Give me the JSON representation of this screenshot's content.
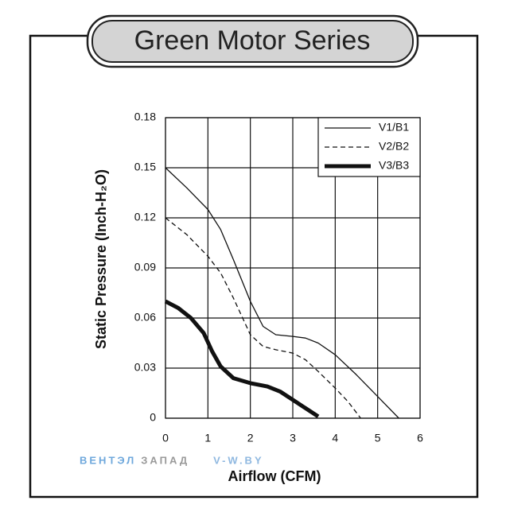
{
  "chart_data": {
    "type": "line",
    "title": "Green Motor Series",
    "x_label": "Airflow (CFM)",
    "y_label": "Static Pressure (Inch-H₂O)",
    "xlim": [
      0,
      6
    ],
    "xticks": [
      0,
      1,
      2,
      3,
      4,
      5,
      6
    ],
    "ylim": [
      0,
      0.18
    ],
    "yticks": [
      0,
      0.03,
      0.06,
      0.09,
      0.12,
      0.15,
      0.18
    ],
    "grid": true,
    "legend": "upper right",
    "series": [
      {
        "name": "V1/B1",
        "color": "#111111",
        "dash": "solid",
        "width": 1.3,
        "x": [
          0,
          0.5,
          1,
          1.3,
          1.6,
          2,
          2.3,
          2.6,
          3,
          3.3,
          3.6,
          4,
          4.5,
          5,
          5.5
        ],
        "values": [
          0.15,
          0.138,
          0.125,
          0.113,
          0.095,
          0.07,
          0.055,
          0.05,
          0.049,
          0.048,
          0.045,
          0.038,
          0.026,
          0.013,
          0
        ]
      },
      {
        "name": "V2/B2",
        "color": "#111111",
        "dash": "dashed",
        "width": 1.3,
        "x": [
          0,
          0.5,
          1,
          1.3,
          1.6,
          2,
          2.3,
          2.6,
          3,
          3.3,
          3.6,
          4,
          4.3,
          4.6
        ],
        "values": [
          0.12,
          0.11,
          0.097,
          0.087,
          0.072,
          0.05,
          0.043,
          0.041,
          0.039,
          0.035,
          0.028,
          0.018,
          0.01,
          0
        ]
      },
      {
        "name": "V3/B3",
        "color": "#111111",
        "dash": "solid",
        "width": 5,
        "x": [
          0,
          0.3,
          0.6,
          0.9,
          1.1,
          1.3,
          1.6,
          2,
          2.4,
          2.7,
          3,
          3.3,
          3.6
        ],
        "values": [
          0.07,
          0.066,
          0.06,
          0.051,
          0.04,
          0.031,
          0.024,
          0.021,
          0.019,
          0.016,
          0.011,
          0.006,
          0.001
        ]
      }
    ],
    "annotations": [
      {
        "text": "ВЕНТЭЛ",
        "color": "#6fa8dc"
      },
      {
        "text": "ЗАПАД",
        "color": "#999999"
      },
      {
        "text": "V-W.BY",
        "color": "#8fb8e0"
      }
    ]
  }
}
